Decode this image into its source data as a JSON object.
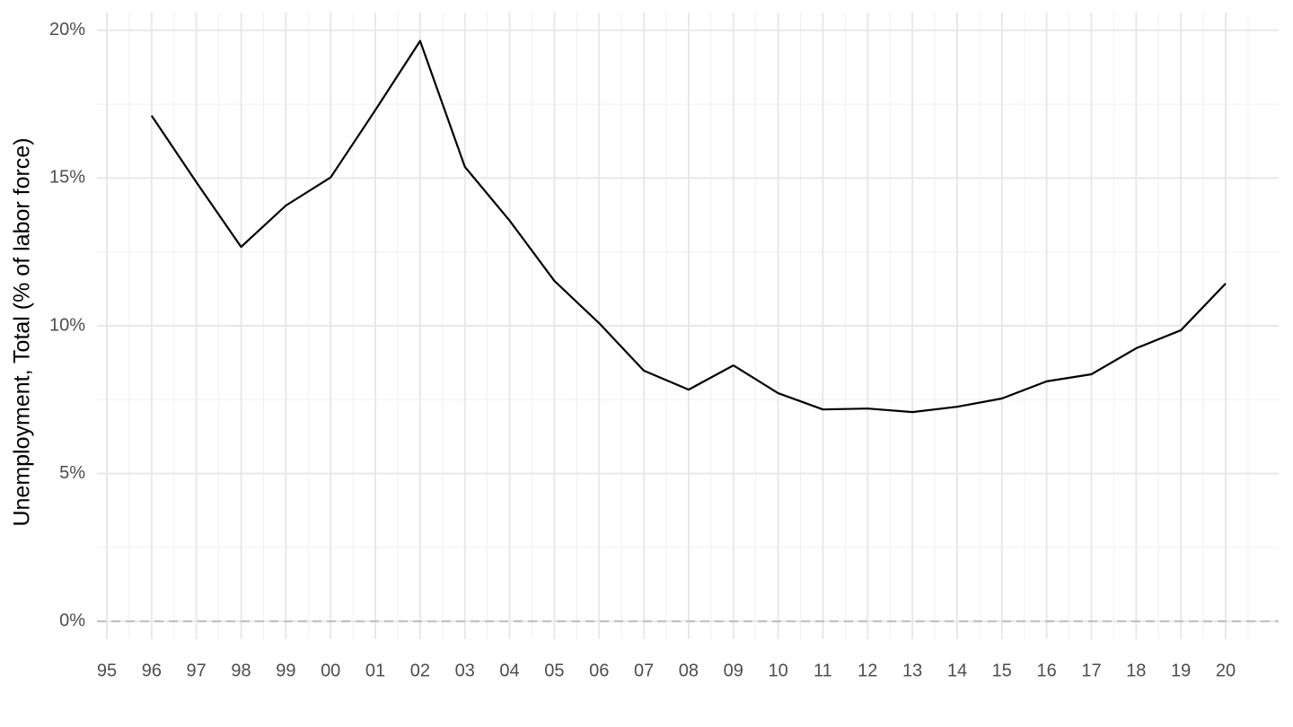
{
  "chart_data": {
    "type": "line",
    "y_label": "Unemployment, Total (% of labor force)",
    "categories": [
      "95",
      "96",
      "97",
      "98",
      "99",
      "00",
      "01",
      "02",
      "03",
      "04",
      "05",
      "06",
      "07",
      "08",
      "09",
      "10",
      "11",
      "12",
      "13",
      "14",
      "15",
      "16",
      "17",
      "18",
      "19",
      "20"
    ],
    "series": [
      {
        "name": "Unemployment",
        "color": "#000000",
        "values": [
          null,
          17.11,
          14.86,
          12.67,
          14.07,
          15.02,
          17.3,
          19.64,
          15.38,
          13.56,
          11.52,
          10.09,
          8.48,
          7.84,
          8.66,
          7.72,
          7.17,
          7.2,
          7.08,
          7.26,
          7.54,
          8.12,
          8.36,
          9.24,
          9.85,
          11.43
        ]
      }
    ],
    "ylim": [
      -0.6,
      20.6
    ],
    "yticks": [
      {
        "value": 0,
        "label": "0%"
      },
      {
        "value": 5,
        "label": "5%"
      },
      {
        "value": 10,
        "label": "10%"
      },
      {
        "value": 15,
        "label": "15%"
      },
      {
        "value": 20,
        "label": "20%"
      }
    ],
    "hline": 0,
    "grid": true
  }
}
